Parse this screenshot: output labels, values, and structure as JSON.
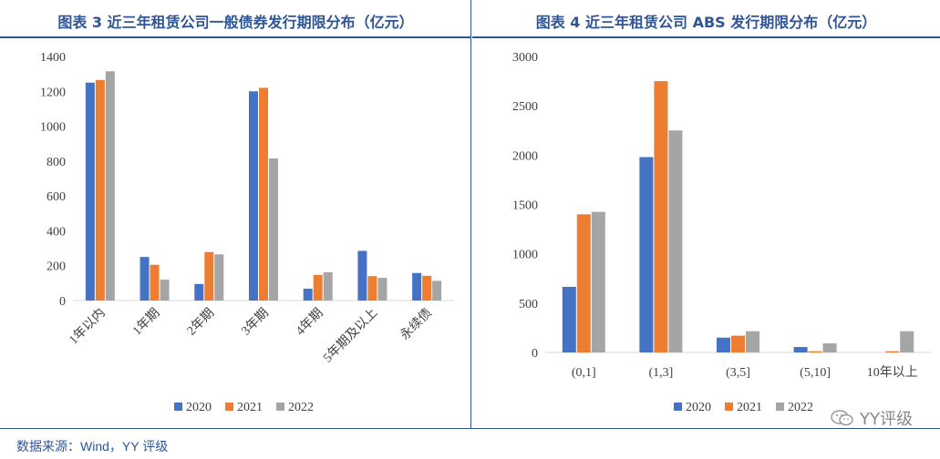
{
  "colors": {
    "accent": "#2F5597",
    "s2020": "#4472C4",
    "s2021": "#ED7D31",
    "s2022": "#A5A5A5"
  },
  "source_note": "数据来源：Wind，YY 评级",
  "watermark": "YY评级",
  "watermark_icon": "wechat-icon",
  "chart_data": [
    {
      "type": "bar",
      "title": "图表 3 近三年租赁公司一般债券发行期限分布（亿元）",
      "categories": [
        "1年以内",
        "1年期",
        "2年期",
        "3年期",
        "4年期",
        "5年期及以上",
        "永续债"
      ],
      "series": [
        {
          "name": "2020",
          "values": [
            1250,
            250,
            95,
            1200,
            68,
            285,
            158
          ]
        },
        {
          "name": "2021",
          "values": [
            1265,
            205,
            278,
            1220,
            147,
            140,
            142
          ]
        },
        {
          "name": "2022",
          "values": [
            1315,
            120,
            265,
            815,
            162,
            130,
            113
          ]
        }
      ],
      "ylim": [
        0,
        1400
      ],
      "yticks": [
        0,
        200,
        400,
        600,
        800,
        1000,
        1200,
        1400
      ],
      "grid": false,
      "legend": "bottom"
    },
    {
      "type": "bar",
      "title": "图表 4 近三年租赁公司 ABS 发行期限分布（亿元）",
      "categories": [
        "(0,1]",
        "(1,3]",
        "(3,5]",
        "(5,10]",
        "10年以上"
      ],
      "series": [
        {
          "name": "2020",
          "values": [
            665,
            1980,
            150,
            55,
            0
          ]
        },
        {
          "name": "2021",
          "values": [
            1400,
            2750,
            170,
            12,
            12
          ]
        },
        {
          "name": "2022",
          "values": [
            1425,
            2250,
            215,
            92,
            215
          ]
        }
      ],
      "ylim": [
        0,
        3000
      ],
      "yticks": [
        0,
        500,
        1000,
        1500,
        2000,
        2500,
        3000
      ],
      "grid": false,
      "legend": "bottom"
    }
  ]
}
